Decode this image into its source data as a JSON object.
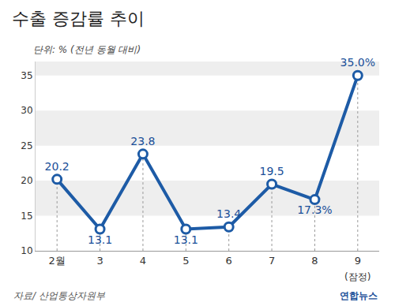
{
  "chart_data": {
    "type": "line",
    "title": "수출 증감률 추이",
    "subtitle": "단위: % (전년 동월 대비)",
    "categories": [
      "2월",
      "3",
      "4",
      "5",
      "6",
      "7",
      "8",
      "9"
    ],
    "values": [
      20.2,
      13.1,
      23.8,
      13.1,
      13.4,
      19.5,
      17.3,
      35.0
    ],
    "value_labels": [
      "20.2",
      "13.1",
      "23.8",
      "13.1",
      "13.4",
      "19.5",
      "17.3%",
      "35.0%"
    ],
    "color": "#1d5ba6",
    "marker": "circle",
    "ylim": [
      10,
      37
    ],
    "yticks": [
      10,
      15,
      20,
      25,
      30,
      35
    ],
    "grid": true,
    "data_labels": true,
    "annotations": [
      {
        "text": "(잠정)",
        "category": "9"
      }
    ],
    "source": "자료/ 산업통상자원부",
    "credit": "연합뉴스"
  }
}
